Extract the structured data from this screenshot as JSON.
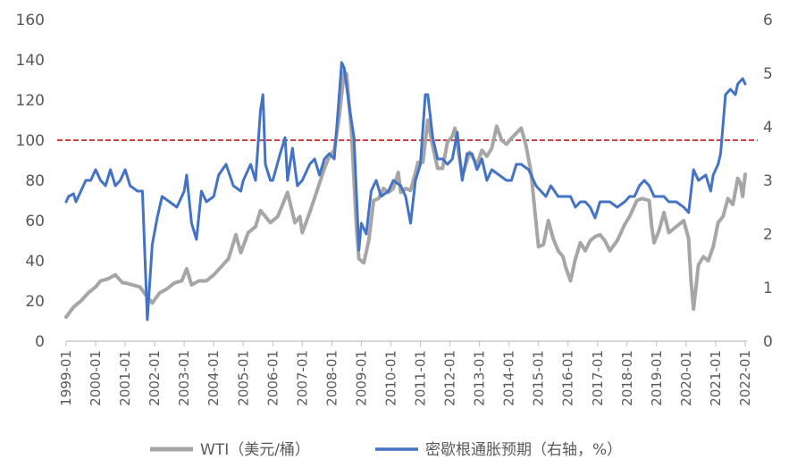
{
  "chart_data": {
    "type": "line",
    "title": "",
    "y_left": {
      "ticks": [
        0,
        20,
        40,
        60,
        80,
        100,
        120,
        140,
        160
      ],
      "range": [
        0,
        160
      ]
    },
    "y_right": {
      "ticks": [
        0,
        1,
        2,
        3,
        4,
        5,
        6
      ],
      "range": [
        0,
        6
      ]
    },
    "x_ticks": [
      "1999-01",
      "2000-01",
      "2001-01",
      "2002-01",
      "2003-01",
      "2004-01",
      "2005-01",
      "2006-01",
      "2007-01",
      "2008-01",
      "2009-01",
      "2010-01",
      "2011-01",
      "2012-01",
      "2013-01",
      "2014-01",
      "2015-01",
      "2016-01",
      "2017-01",
      "2018-01",
      "2019-01",
      "2020-01",
      "2021-01",
      "2022-01"
    ],
    "reference_line": {
      "axis": "left",
      "value": 100,
      "color": "#c00000",
      "style": "dashed"
    },
    "legend_position": "bottom",
    "series": [
      {
        "name": "WTI（美元/桶）",
        "axis": "left",
        "color": "#a6a6a6",
        "points": [
          [
            "1999-01",
            12
          ],
          [
            "1999-04",
            17
          ],
          [
            "1999-07",
            20
          ],
          [
            "1999-10",
            24
          ],
          [
            "2000-01",
            27
          ],
          [
            "2000-03",
            30
          ],
          [
            "2000-06",
            31
          ],
          [
            "2000-09",
            33
          ],
          [
            "2000-12",
            29
          ],
          [
            "2001-01",
            29
          ],
          [
            "2001-04",
            28
          ],
          [
            "2001-07",
            27
          ],
          [
            "2001-10",
            22
          ],
          [
            "2001-12",
            19
          ],
          [
            "2002-03",
            24
          ],
          [
            "2002-06",
            26
          ],
          [
            "2002-09",
            29
          ],
          [
            "2002-12",
            30
          ],
          [
            "2003-02",
            36
          ],
          [
            "2003-04",
            28
          ],
          [
            "2003-07",
            30
          ],
          [
            "2003-10",
            30
          ],
          [
            "2004-01",
            33
          ],
          [
            "2004-04",
            37
          ],
          [
            "2004-07",
            41
          ],
          [
            "2004-10",
            53
          ],
          [
            "2004-12",
            44
          ],
          [
            "2005-03",
            54
          ],
          [
            "2005-06",
            57
          ],
          [
            "2005-08",
            65
          ],
          [
            "2005-12",
            59
          ],
          [
            "2006-03",
            62
          ],
          [
            "2006-07",
            74
          ],
          [
            "2006-10",
            59
          ],
          [
            "2006-12",
            62
          ],
          [
            "2007-01",
            54
          ],
          [
            "2007-04",
            64
          ],
          [
            "2007-07",
            75
          ],
          [
            "2007-10",
            86
          ],
          [
            "2007-12",
            92
          ],
          [
            "2008-02",
            95
          ],
          [
            "2008-04",
            112
          ],
          [
            "2008-06",
            134
          ],
          [
            "2008-07",
            133
          ],
          [
            "2008-09",
            104
          ],
          [
            "2008-11",
            57
          ],
          [
            "2008-12",
            41
          ],
          [
            "2009-02",
            39
          ],
          [
            "2009-04",
            50
          ],
          [
            "2009-06",
            70
          ],
          [
            "2009-08",
            71
          ],
          [
            "2009-10",
            76
          ],
          [
            "2009-12",
            74
          ],
          [
            "2010-02",
            76
          ],
          [
            "2010-04",
            84
          ],
          [
            "2010-05",
            74
          ],
          [
            "2010-07",
            76
          ],
          [
            "2010-09",
            75
          ],
          [
            "2010-11",
            84
          ],
          [
            "2010-12",
            89
          ],
          [
            "2011-02",
            89
          ],
          [
            "2011-04",
            110
          ],
          [
            "2011-06",
            97
          ],
          [
            "2011-08",
            86
          ],
          [
            "2011-10",
            86
          ],
          [
            "2011-12",
            99
          ],
          [
            "2012-02",
            102
          ],
          [
            "2012-03",
            106
          ],
          [
            "2012-06",
            82
          ],
          [
            "2012-09",
            94
          ],
          [
            "2012-12",
            88
          ],
          [
            "2013-02",
            95
          ],
          [
            "2013-04",
            92
          ],
          [
            "2013-06",
            96
          ],
          [
            "2013-08",
            107
          ],
          [
            "2013-10",
            100
          ],
          [
            "2013-12",
            98
          ],
          [
            "2014-02",
            101
          ],
          [
            "2014-06",
            106
          ],
          [
            "2014-08",
            97
          ],
          [
            "2014-10",
            84
          ],
          [
            "2014-12",
            59
          ],
          [
            "2015-01",
            47
          ],
          [
            "2015-03",
            48
          ],
          [
            "2015-05",
            60
          ],
          [
            "2015-07",
            51
          ],
          [
            "2015-09",
            45
          ],
          [
            "2015-11",
            42
          ],
          [
            "2015-12",
            37
          ],
          [
            "2016-02",
            30
          ],
          [
            "2016-04",
            41
          ],
          [
            "2016-06",
            49
          ],
          [
            "2016-08",
            45
          ],
          [
            "2016-10",
            50
          ],
          [
            "2016-12",
            52
          ],
          [
            "2017-02",
            53
          ],
          [
            "2017-04",
            50
          ],
          [
            "2017-06",
            45
          ],
          [
            "2017-09",
            50
          ],
          [
            "2017-12",
            58
          ],
          [
            "2018-02",
            62
          ],
          [
            "2018-05",
            70
          ],
          [
            "2018-07",
            71
          ],
          [
            "2018-10",
            70
          ],
          [
            "2018-11",
            57
          ],
          [
            "2018-12",
            49
          ],
          [
            "2019-02",
            55
          ],
          [
            "2019-04",
            64
          ],
          [
            "2019-06",
            54
          ],
          [
            "2019-09",
            57
          ],
          [
            "2019-12",
            60
          ],
          [
            "2020-02",
            51
          ],
          [
            "2020-03",
            30
          ],
          [
            "2020-04",
            16
          ],
          [
            "2020-06",
            38
          ],
          [
            "2020-08",
            42
          ],
          [
            "2020-10",
            40
          ],
          [
            "2020-12",
            47
          ],
          [
            "2021-02",
            59
          ],
          [
            "2021-04",
            62
          ],
          [
            "2021-06",
            71
          ],
          [
            "2021-08",
            68
          ],
          [
            "2021-10",
            81
          ],
          [
            "2021-11",
            79
          ],
          [
            "2021-12",
            72
          ],
          [
            "2022-01",
            83
          ]
        ]
      },
      {
        "name": "密歇根通胀预期（右轴，%）",
        "axis": "right",
        "color": "#4472c4",
        "points": [
          [
            "1999-01",
            2.6
          ],
          [
            "1999-02",
            2.7
          ],
          [
            "1999-04",
            2.75
          ],
          [
            "1999-05",
            2.6
          ],
          [
            "1999-07",
            2.8
          ],
          [
            "1999-09",
            3.0
          ],
          [
            "1999-11",
            3.0
          ],
          [
            "2000-01",
            3.2
          ],
          [
            "2000-03",
            3.0
          ],
          [
            "2000-05",
            2.9
          ],
          [
            "2000-07",
            3.2
          ],
          [
            "2000-09",
            2.9
          ],
          [
            "2000-11",
            3.0
          ],
          [
            "2001-01",
            3.2
          ],
          [
            "2001-03",
            2.9
          ],
          [
            "2001-06",
            2.8
          ],
          [
            "2001-08",
            2.8
          ],
          [
            "2001-10",
            0.4
          ],
          [
            "2001-12",
            1.8
          ],
          [
            "2002-02",
            2.3
          ],
          [
            "2002-04",
            2.7
          ],
          [
            "2002-07",
            2.6
          ],
          [
            "2002-10",
            2.5
          ],
          [
            "2003-01",
            2.8
          ],
          [
            "2003-02",
            3.1
          ],
          [
            "2003-04",
            2.2
          ],
          [
            "2003-06",
            1.9
          ],
          [
            "2003-08",
            2.8
          ],
          [
            "2003-10",
            2.6
          ],
          [
            "2004-01",
            2.7
          ],
          [
            "2004-03",
            3.1
          ],
          [
            "2004-06",
            3.3
          ],
          [
            "2004-09",
            2.9
          ],
          [
            "2004-12",
            2.8
          ],
          [
            "2005-01",
            3.0
          ],
          [
            "2005-04",
            3.3
          ],
          [
            "2005-06",
            3.0
          ],
          [
            "2005-08",
            4.3
          ],
          [
            "2005-09",
            4.6
          ],
          [
            "2005-10",
            3.3
          ],
          [
            "2005-12",
            3.0
          ],
          [
            "2006-01",
            3.0
          ],
          [
            "2006-04",
            3.5
          ],
          [
            "2006-06",
            3.8
          ],
          [
            "2006-07",
            3.0
          ],
          [
            "2006-09",
            3.6
          ],
          [
            "2006-11",
            2.9
          ],
          [
            "2007-01",
            3.0
          ],
          [
            "2007-04",
            3.3
          ],
          [
            "2007-06",
            3.4
          ],
          [
            "2007-08",
            3.1
          ],
          [
            "2007-10",
            3.4
          ],
          [
            "2007-12",
            3.5
          ],
          [
            "2008-02",
            3.4
          ],
          [
            "2008-04",
            4.6
          ],
          [
            "2008-05",
            5.2
          ],
          [
            "2008-06",
            5.1
          ],
          [
            "2008-08",
            4.4
          ],
          [
            "2008-10",
            3.8
          ],
          [
            "2008-12",
            1.7
          ],
          [
            "2009-01",
            2.2
          ],
          [
            "2009-03",
            2.0
          ],
          [
            "2009-05",
            2.8
          ],
          [
            "2009-07",
            3.0
          ],
          [
            "2009-09",
            2.7
          ],
          [
            "2009-12",
            2.8
          ],
          [
            "2010-02",
            3.0
          ],
          [
            "2010-05",
            2.9
          ],
          [
            "2010-07",
            2.7
          ],
          [
            "2010-09",
            2.2
          ],
          [
            "2010-11",
            3.0
          ],
          [
            "2011-01",
            3.3
          ],
          [
            "2011-03",
            4.6
          ],
          [
            "2011-04",
            4.6
          ],
          [
            "2011-06",
            3.8
          ],
          [
            "2011-08",
            3.4
          ],
          [
            "2011-10",
            3.4
          ],
          [
            "2011-12",
            3.3
          ],
          [
            "2012-02",
            3.4
          ],
          [
            "2012-04",
            3.9
          ],
          [
            "2012-06",
            3.0
          ],
          [
            "2012-08",
            3.5
          ],
          [
            "2012-10",
            3.5
          ],
          [
            "2012-12",
            3.2
          ],
          [
            "2013-02",
            3.4
          ],
          [
            "2013-04",
            3.0
          ],
          [
            "2013-06",
            3.2
          ],
          [
            "2013-09",
            3.1
          ],
          [
            "2013-12",
            3.0
          ],
          [
            "2014-02",
            3.0
          ],
          [
            "2014-04",
            3.3
          ],
          [
            "2014-06",
            3.3
          ],
          [
            "2014-09",
            3.2
          ],
          [
            "2014-12",
            2.9
          ],
          [
            "2015-02",
            2.8
          ],
          [
            "2015-04",
            2.7
          ],
          [
            "2015-06",
            2.9
          ],
          [
            "2015-09",
            2.7
          ],
          [
            "2015-12",
            2.7
          ],
          [
            "2016-02",
            2.7
          ],
          [
            "2016-04",
            2.5
          ],
          [
            "2016-06",
            2.6
          ],
          [
            "2016-08",
            2.6
          ],
          [
            "2016-10",
            2.5
          ],
          [
            "2016-12",
            2.3
          ],
          [
            "2017-02",
            2.6
          ],
          [
            "2017-04",
            2.6
          ],
          [
            "2017-06",
            2.6
          ],
          [
            "2017-09",
            2.5
          ],
          [
            "2017-12",
            2.6
          ],
          [
            "2018-02",
            2.7
          ],
          [
            "2018-04",
            2.7
          ],
          [
            "2018-06",
            2.9
          ],
          [
            "2018-08",
            3.0
          ],
          [
            "2018-10",
            2.9
          ],
          [
            "2018-12",
            2.7
          ],
          [
            "2019-02",
            2.7
          ],
          [
            "2019-04",
            2.7
          ],
          [
            "2019-06",
            2.6
          ],
          [
            "2019-09",
            2.6
          ],
          [
            "2019-12",
            2.5
          ],
          [
            "2020-02",
            2.4
          ],
          [
            "2020-04",
            3.2
          ],
          [
            "2020-06",
            3.0
          ],
          [
            "2020-09",
            3.1
          ],
          [
            "2020-11",
            2.8
          ],
          [
            "2020-12",
            3.1
          ],
          [
            "2021-02",
            3.3
          ],
          [
            "2021-03",
            3.5
          ],
          [
            "2021-05",
            4.6
          ],
          [
            "2021-07",
            4.7
          ],
          [
            "2021-09",
            4.6
          ],
          [
            "2021-10",
            4.8
          ],
          [
            "2021-12",
            4.9
          ],
          [
            "2022-01",
            4.8
          ]
        ]
      }
    ]
  }
}
